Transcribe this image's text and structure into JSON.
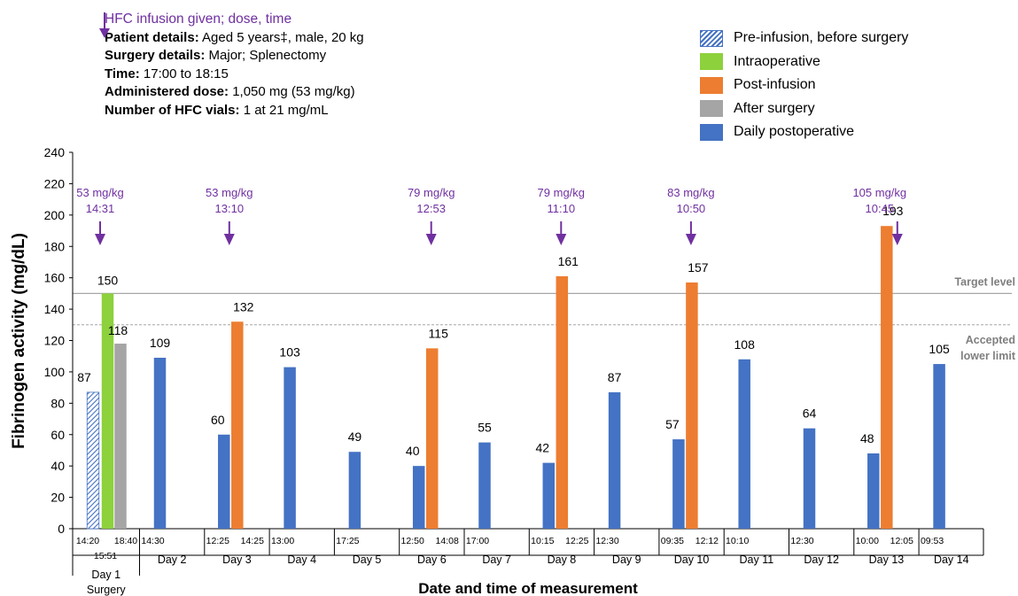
{
  "info": {
    "legend_arrow_text": "HFC infusion given; dose, time",
    "patient_label": "Patient details:",
    "patient_value": " Aged 5 years‡, male, 20 kg",
    "surgery_label": "Surgery details:",
    "surgery_value": " Major; Splenectomy",
    "time_label": "Time:",
    "time_value": " 17:00 to 18:15",
    "dose_label": "Administered dose:",
    "dose_value": " 1,050 mg (53 mg/kg)",
    "vials_label": "Number of HFC vials:",
    "vials_value": " 1 at 21 mg/mL"
  },
  "legend": [
    {
      "key": "pre",
      "label": "Pre-infusion, before surgery"
    },
    {
      "key": "intra",
      "label": "Intraoperative"
    },
    {
      "key": "post",
      "label": "Post-infusion"
    },
    {
      "key": "after",
      "label": "After surgery"
    },
    {
      "key": "daily",
      "label": "Daily postoperative"
    }
  ],
  "colors": {
    "pre": "#4472c4",
    "intra": "#8dd13c",
    "post": "#ed7d31",
    "after": "#a5a5a5",
    "daily": "#4472c4",
    "annotation": "#7030a0",
    "reference": "#a6a6a6"
  },
  "chart_data": {
    "type": "bar",
    "ylabel": "Fibrinogen activity (mg/dL)",
    "xlabel": "Date and time of measurement",
    "ylim": [
      0,
      240
    ],
    "yticks": [
      0,
      20,
      40,
      60,
      80,
      100,
      120,
      140,
      160,
      180,
      200,
      220,
      240
    ],
    "reference_lines": [
      {
        "label": "Target level",
        "value": 150,
        "style": "solid"
      },
      {
        "label": "Accepted lower limit",
        "value": 130,
        "style": "dashed"
      }
    ],
    "groups": [
      {
        "day": "Day 1",
        "sub": "Surgery",
        "bars": [
          {
            "time": "14:20",
            "value": 87,
            "kind": "pre"
          },
          {
            "time": "15:51",
            "value": 150,
            "kind": "intra"
          },
          {
            "time": "18:40",
            "value": 118,
            "kind": "after"
          }
        ]
      },
      {
        "day": "Day 2",
        "bars": [
          {
            "time": "14:30",
            "value": 109,
            "kind": "daily"
          }
        ]
      },
      {
        "day": "Day 3",
        "bars": [
          {
            "time": "12:25",
            "value": 60,
            "kind": "daily"
          },
          {
            "time": "14:25",
            "value": 132,
            "kind": "post"
          }
        ]
      },
      {
        "day": "Day 4",
        "bars": [
          {
            "time": "13:00",
            "value": 103,
            "kind": "daily"
          }
        ]
      },
      {
        "day": "Day 5",
        "bars": [
          {
            "time": "17:25",
            "value": 49,
            "kind": "daily"
          }
        ]
      },
      {
        "day": "Day 6",
        "bars": [
          {
            "time": "12:50",
            "value": 40,
            "kind": "daily"
          },
          {
            "time": "14:08",
            "value": 115,
            "kind": "post"
          }
        ]
      },
      {
        "day": "Day 7",
        "bars": [
          {
            "time": "17:00",
            "value": 55,
            "kind": "daily"
          }
        ]
      },
      {
        "day": "Day 8",
        "bars": [
          {
            "time": "10:15",
            "value": 42,
            "kind": "daily"
          },
          {
            "time": "12:25",
            "value": 161,
            "kind": "post"
          }
        ]
      },
      {
        "day": "Day 9",
        "bars": [
          {
            "time": "12:30",
            "value": 87,
            "kind": "daily"
          }
        ]
      },
      {
        "day": "Day 10",
        "bars": [
          {
            "time": "09:35",
            "value": 57,
            "kind": "daily"
          },
          {
            "time": "12:12",
            "value": 157,
            "kind": "post"
          }
        ]
      },
      {
        "day": "Day 11",
        "bars": [
          {
            "time": "10:10",
            "value": 108,
            "kind": "daily"
          }
        ]
      },
      {
        "day": "Day 12",
        "bars": [
          {
            "time": "12:30",
            "value": 64,
            "kind": "daily"
          }
        ]
      },
      {
        "day": "Day 13",
        "bars": [
          {
            "time": "10:00",
            "value": 48,
            "kind": "daily"
          },
          {
            "time": "12:05",
            "value": 193,
            "kind": "post"
          }
        ]
      },
      {
        "day": "Day 14",
        "bars": [
          {
            "time": "09:53",
            "value": 105,
            "kind": "daily"
          }
        ]
      }
    ],
    "infusions": [
      {
        "group": 0,
        "dose": "53 mg/kg",
        "time": "14:31"
      },
      {
        "group": 2,
        "dose": "53 mg/kg",
        "time": "13:10"
      },
      {
        "group": 5,
        "dose": "79 mg/kg",
        "time": "12:53"
      },
      {
        "group": 7,
        "dose": "79 mg/kg",
        "time": "11:10"
      },
      {
        "group": 9,
        "dose": "83 mg/kg",
        "time": "10:50"
      },
      {
        "group": 12,
        "dose": "105 mg/kg",
        "time": "10:45"
      }
    ]
  }
}
